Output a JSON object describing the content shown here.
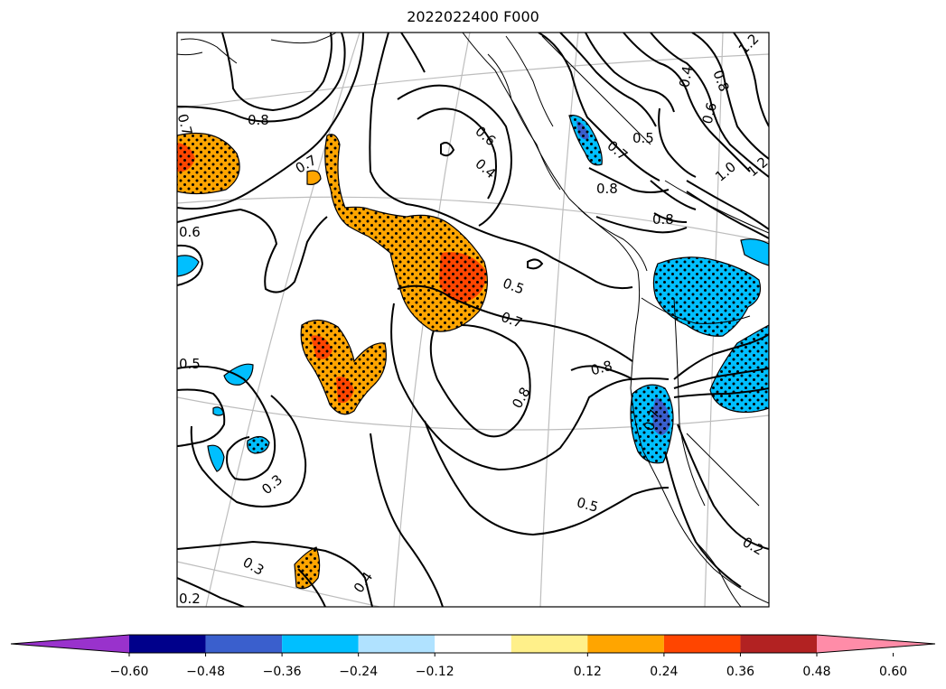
{
  "title": "2022022400 F000",
  "colors": {
    "coast": "#000000",
    "grid": "#bdbdbd",
    "pos_light": "#ffa500",
    "pos_strong": "#ff4500",
    "neg_light": "#00bfff",
    "neg_strong": "#3a5fcd"
  },
  "contour_labels": [
    {
      "text": "0.7"
    },
    {
      "text": "0.8"
    },
    {
      "text": "0.7"
    },
    {
      "text": "0.6"
    },
    {
      "text": "0.5"
    },
    {
      "text": "0.3"
    },
    {
      "text": "0.3"
    },
    {
      "text": "0.2"
    },
    {
      "text": "0.4"
    },
    {
      "text": "0.6"
    },
    {
      "text": "0.4"
    },
    {
      "text": "0.5"
    },
    {
      "text": "0.7"
    },
    {
      "text": "0.8"
    },
    {
      "text": "0.8"
    },
    {
      "text": "0.5"
    },
    {
      "text": "0.8"
    },
    {
      "text": "0.5"
    },
    {
      "text": "0.7"
    },
    {
      "text": "0.8"
    },
    {
      "text": "0.4"
    },
    {
      "text": "0.6"
    },
    {
      "text": "0.8"
    },
    {
      "text": "1.0"
    },
    {
      "text": "1.2"
    },
    {
      "text": "1.2"
    },
    {
      "text": "0.7"
    },
    {
      "text": "0.2"
    }
  ],
  "colorbar": {
    "extend": "both",
    "bins": [
      {
        "color": "#9932cc"
      },
      {
        "color": "#00008b"
      },
      {
        "color": "#3a5fcd"
      },
      {
        "color": "#00bfff"
      },
      {
        "color": "#b0e2ff"
      },
      {
        "color": "#ffffff"
      },
      {
        "color": "#fff08a"
      },
      {
        "color": "#ffa500"
      },
      {
        "color": "#ff4500"
      },
      {
        "color": "#b22222"
      },
      {
        "color": "#ff8ca8"
      }
    ],
    "ticks": [
      "−0.60",
      "−0.48",
      "−0.36",
      "−0.24",
      "−0.12",
      "0.12",
      "0.24",
      "0.36",
      "0.48",
      "0.60"
    ]
  }
}
